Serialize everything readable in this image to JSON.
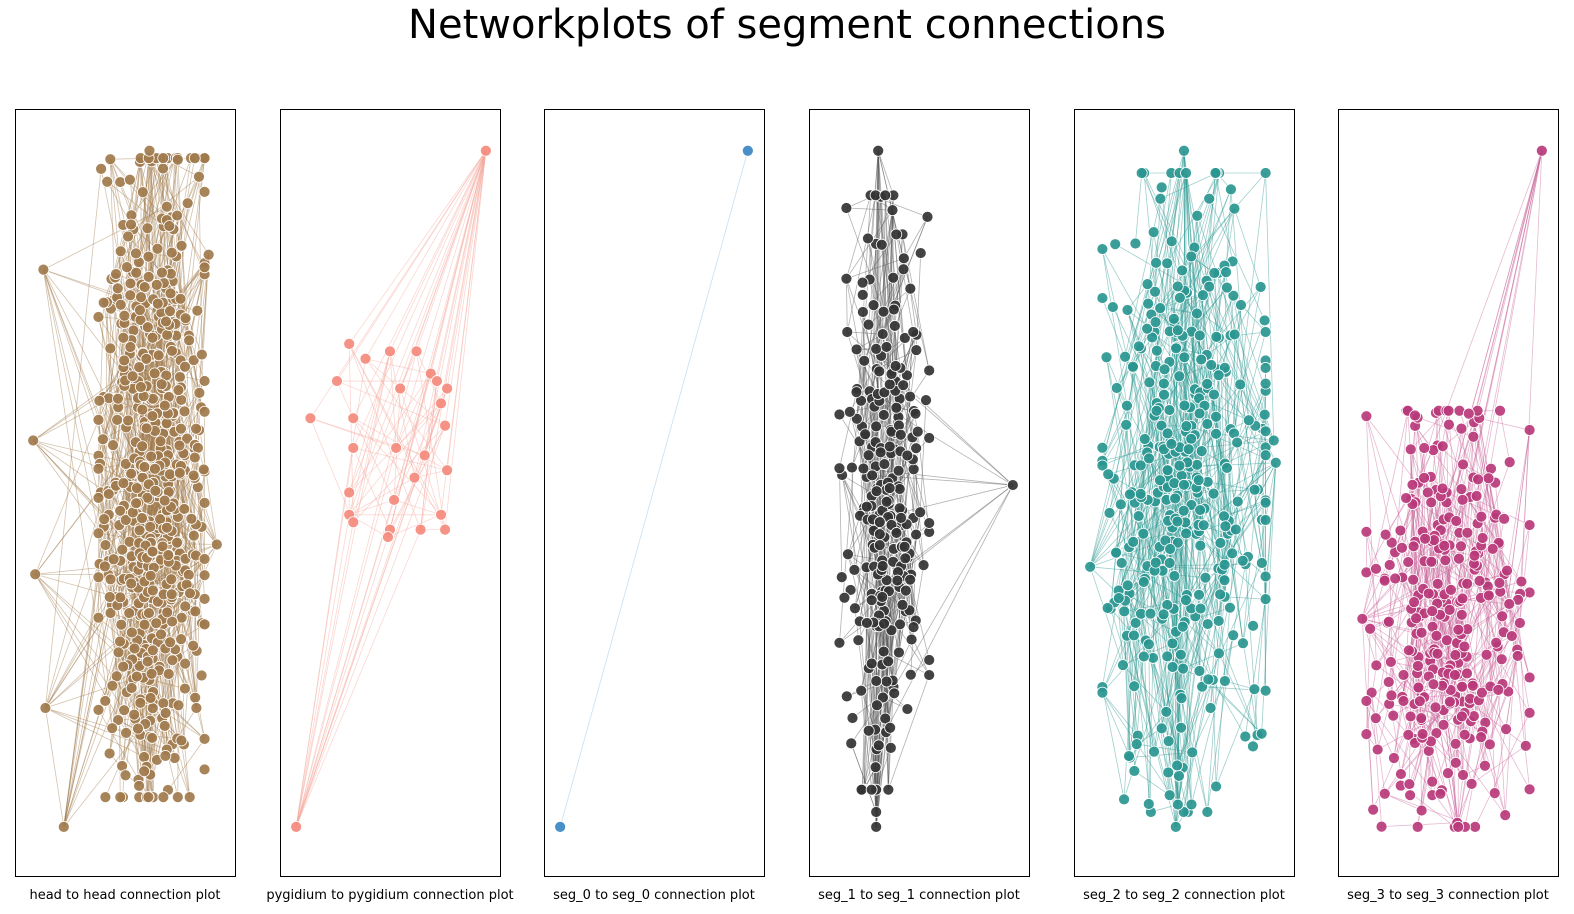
{
  "figure": {
    "title": "Networkplots of segment connections"
  },
  "chart_data": [
    {
      "type": "network",
      "xlabel": "head to head connection plot",
      "node_color": "#A07A4C",
      "edge_color": "#A07A4C",
      "node_count": 600,
      "outlier_nodes": [
        {
          "x": 0.1,
          "y": 0.8
        },
        {
          "x": 0.05,
          "y": 0.57
        },
        {
          "x": 0.06,
          "y": 0.39
        },
        {
          "x": 0.11,
          "y": 0.21
        },
        {
          "x": 0.2,
          "y": 0.05
        },
        {
          "x": 0.62,
          "y": 0.96
        },
        {
          "x": 0.95,
          "y": 0.43
        },
        {
          "x": 0.91,
          "y": 0.82
        },
        {
          "x": 0.85,
          "y": 0.21
        }
      ],
      "cluster": {
        "cx": 0.63,
        "cy": 0.52,
        "rx": 0.26,
        "ry": 0.43
      }
    },
    {
      "type": "network",
      "xlabel": "pygidium to pygidium connection plot",
      "node_color": "#F48A7C",
      "edge_color": "#F4A79C",
      "nodes": [
        {
          "x": 0.97,
          "y": 0.96
        },
        {
          "x": 0.04,
          "y": 0.05
        },
        {
          "x": 0.3,
          "y": 0.7
        },
        {
          "x": 0.38,
          "y": 0.68
        },
        {
          "x": 0.5,
          "y": 0.69
        },
        {
          "x": 0.63,
          "y": 0.69
        },
        {
          "x": 0.24,
          "y": 0.65
        },
        {
          "x": 0.55,
          "y": 0.64
        },
        {
          "x": 0.7,
          "y": 0.66
        },
        {
          "x": 0.73,
          "y": 0.65
        },
        {
          "x": 0.78,
          "y": 0.64
        },
        {
          "x": 0.75,
          "y": 0.62
        },
        {
          "x": 0.11,
          "y": 0.6
        },
        {
          "x": 0.32,
          "y": 0.6
        },
        {
          "x": 0.77,
          "y": 0.59
        },
        {
          "x": 0.53,
          "y": 0.56
        },
        {
          "x": 0.67,
          "y": 0.55
        },
        {
          "x": 0.32,
          "y": 0.56
        },
        {
          "x": 0.78,
          "y": 0.53
        },
        {
          "x": 0.62,
          "y": 0.52
        },
        {
          "x": 0.3,
          "y": 0.5
        },
        {
          "x": 0.52,
          "y": 0.49
        },
        {
          "x": 0.75,
          "y": 0.47
        },
        {
          "x": 0.3,
          "y": 0.47
        },
        {
          "x": 0.77,
          "y": 0.45
        },
        {
          "x": 0.32,
          "y": 0.46
        },
        {
          "x": 0.5,
          "y": 0.45
        },
        {
          "x": 0.49,
          "y": 0.44
        },
        {
          "x": 0.65,
          "y": 0.45
        }
      ]
    },
    {
      "type": "network",
      "xlabel": "seg_0 to seg_0 connection plot",
      "node_color": "#3B86C2",
      "edge_color": "#8AB8DC",
      "nodes": [
        {
          "x": 0.96,
          "y": 0.96
        },
        {
          "x": 0.04,
          "y": 0.05
        }
      ],
      "edges": [
        [
          0,
          1
        ]
      ]
    },
    {
      "type": "network",
      "xlabel": "seg_1 to seg_1 connection plot",
      "node_color": "#333333",
      "edge_color": "#555555",
      "node_count": 250,
      "outlier_nodes": [
        {
          "x": 0.96,
          "y": 0.51
        },
        {
          "x": 0.3,
          "y": 0.96
        },
        {
          "x": 0.29,
          "y": 0.05
        },
        {
          "x": 0.37,
          "y": 0.88
        },
        {
          "x": 0.29,
          "y": 0.07
        }
      ],
      "cluster": {
        "cx": 0.33,
        "cy": 0.5,
        "rx": 0.22,
        "ry": 0.4
      }
    },
    {
      "type": "network",
      "xlabel": "seg_2 to seg_2 connection plot",
      "node_color": "#2A9690",
      "edge_color": "#2A9690",
      "node_count": 350,
      "outlier_nodes": [
        {
          "x": 0.5,
          "y": 0.96
        },
        {
          "x": 0.51,
          "y": 0.93
        },
        {
          "x": 0.94,
          "y": 0.57
        },
        {
          "x": 0.95,
          "y": 0.54
        },
        {
          "x": 0.04,
          "y": 0.4
        },
        {
          "x": 0.46,
          "y": 0.05
        },
        {
          "x": 0.47,
          "y": 0.08
        }
      ],
      "cluster": {
        "cx": 0.5,
        "cy": 0.5,
        "rx": 0.4,
        "ry": 0.43
      }
    },
    {
      "type": "network",
      "xlabel": "seg_3 to seg_3 connection plot",
      "node_color": "#B8397A",
      "edge_color": "#C76498",
      "node_count": 300,
      "outlier_nodes": [
        {
          "x": 0.96,
          "y": 0.96
        },
        {
          "x": 0.55,
          "y": 0.05
        },
        {
          "x": 0.8,
          "y": 0.35
        },
        {
          "x": 0.08,
          "y": 0.33
        }
      ],
      "cluster": {
        "cx": 0.5,
        "cy": 0.33,
        "rx": 0.4,
        "ry": 0.28
      }
    }
  ]
}
